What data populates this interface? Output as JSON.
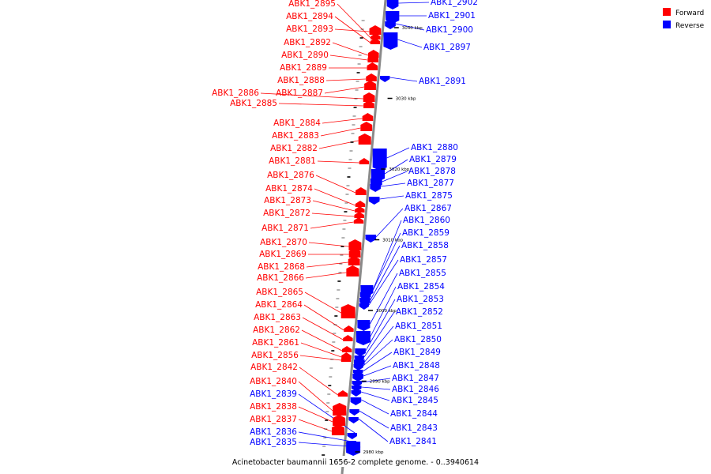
{
  "legend": {
    "forward_label": "Forward",
    "reverse_label": "Reverse",
    "forward_color": "#ff0000",
    "reverse_color": "#0000ff"
  },
  "caption": "Acinetobacter baumannii 1656-2 complete genome. - 0..3940614",
  "ticks": [
    {
      "label": "3040 kbp",
      "pos": 3040
    },
    {
      "label": "3030 kbp",
      "pos": 3030
    },
    {
      "label": "3020 kbp",
      "pos": 3020
    },
    {
      "label": "3010 kbp",
      "pos": 3010
    },
    {
      "label": "3000 kbp",
      "pos": 3000
    },
    {
      "label": "2990 kbp",
      "pos": 2990
    },
    {
      "label": "2980 kbp",
      "pos": 2980
    }
  ],
  "forward_genes": [
    "ABK1_2895",
    "ABK1_2894",
    "ABK1_2893",
    "ABK1_2892",
    "ABK1_2890",
    "ABK1_2889",
    "ABK1_2888",
    "ABK1_2887",
    "ABK1_2886",
    "ABK1_2885",
    "ABK1_2884",
    "ABK1_2883",
    "ABK1_2882",
    "ABK1_2881",
    "ABK1_2876",
    "ABK1_2874",
    "ABK1_2873",
    "ABK1_2872",
    "ABK1_2871",
    "ABK1_2870",
    "ABK1_2869",
    "ABK1_2868",
    "ABK1_2866",
    "ABK1_2865",
    "ABK1_2864",
    "ABK1_2863",
    "ABK1_2862",
    "ABK1_2861",
    "ABK1_2856",
    "ABK1_2842",
    "ABK1_2840",
    "ABK1_2838",
    "ABK1_2837"
  ],
  "reverse_genes_left": [
    "ABK1_2839",
    "ABK1_2836",
    "ABK1_2835"
  ],
  "reverse_genes_right": [
    "ABK1_2902",
    "ABK1_2901",
    "ABK1_2900",
    "ABK1_2897",
    "ABK1_2891",
    "ABK1_2880",
    "ABK1_2879",
    "ABK1_2878",
    "ABK1_2877",
    "ABK1_2875",
    "ABK1_2867",
    "ABK1_2860",
    "ABK1_2859",
    "ABK1_2858",
    "ABK1_2857",
    "ABK1_2855",
    "ABK1_2854",
    "ABK1_2853",
    "ABK1_2852",
    "ABK1_2851",
    "ABK1_2850",
    "ABK1_2849",
    "ABK1_2848",
    "ABK1_2847",
    "ABK1_2846",
    "ABK1_2845",
    "ABK1_2844",
    "ABK1_2843",
    "ABK1_2841"
  ]
}
